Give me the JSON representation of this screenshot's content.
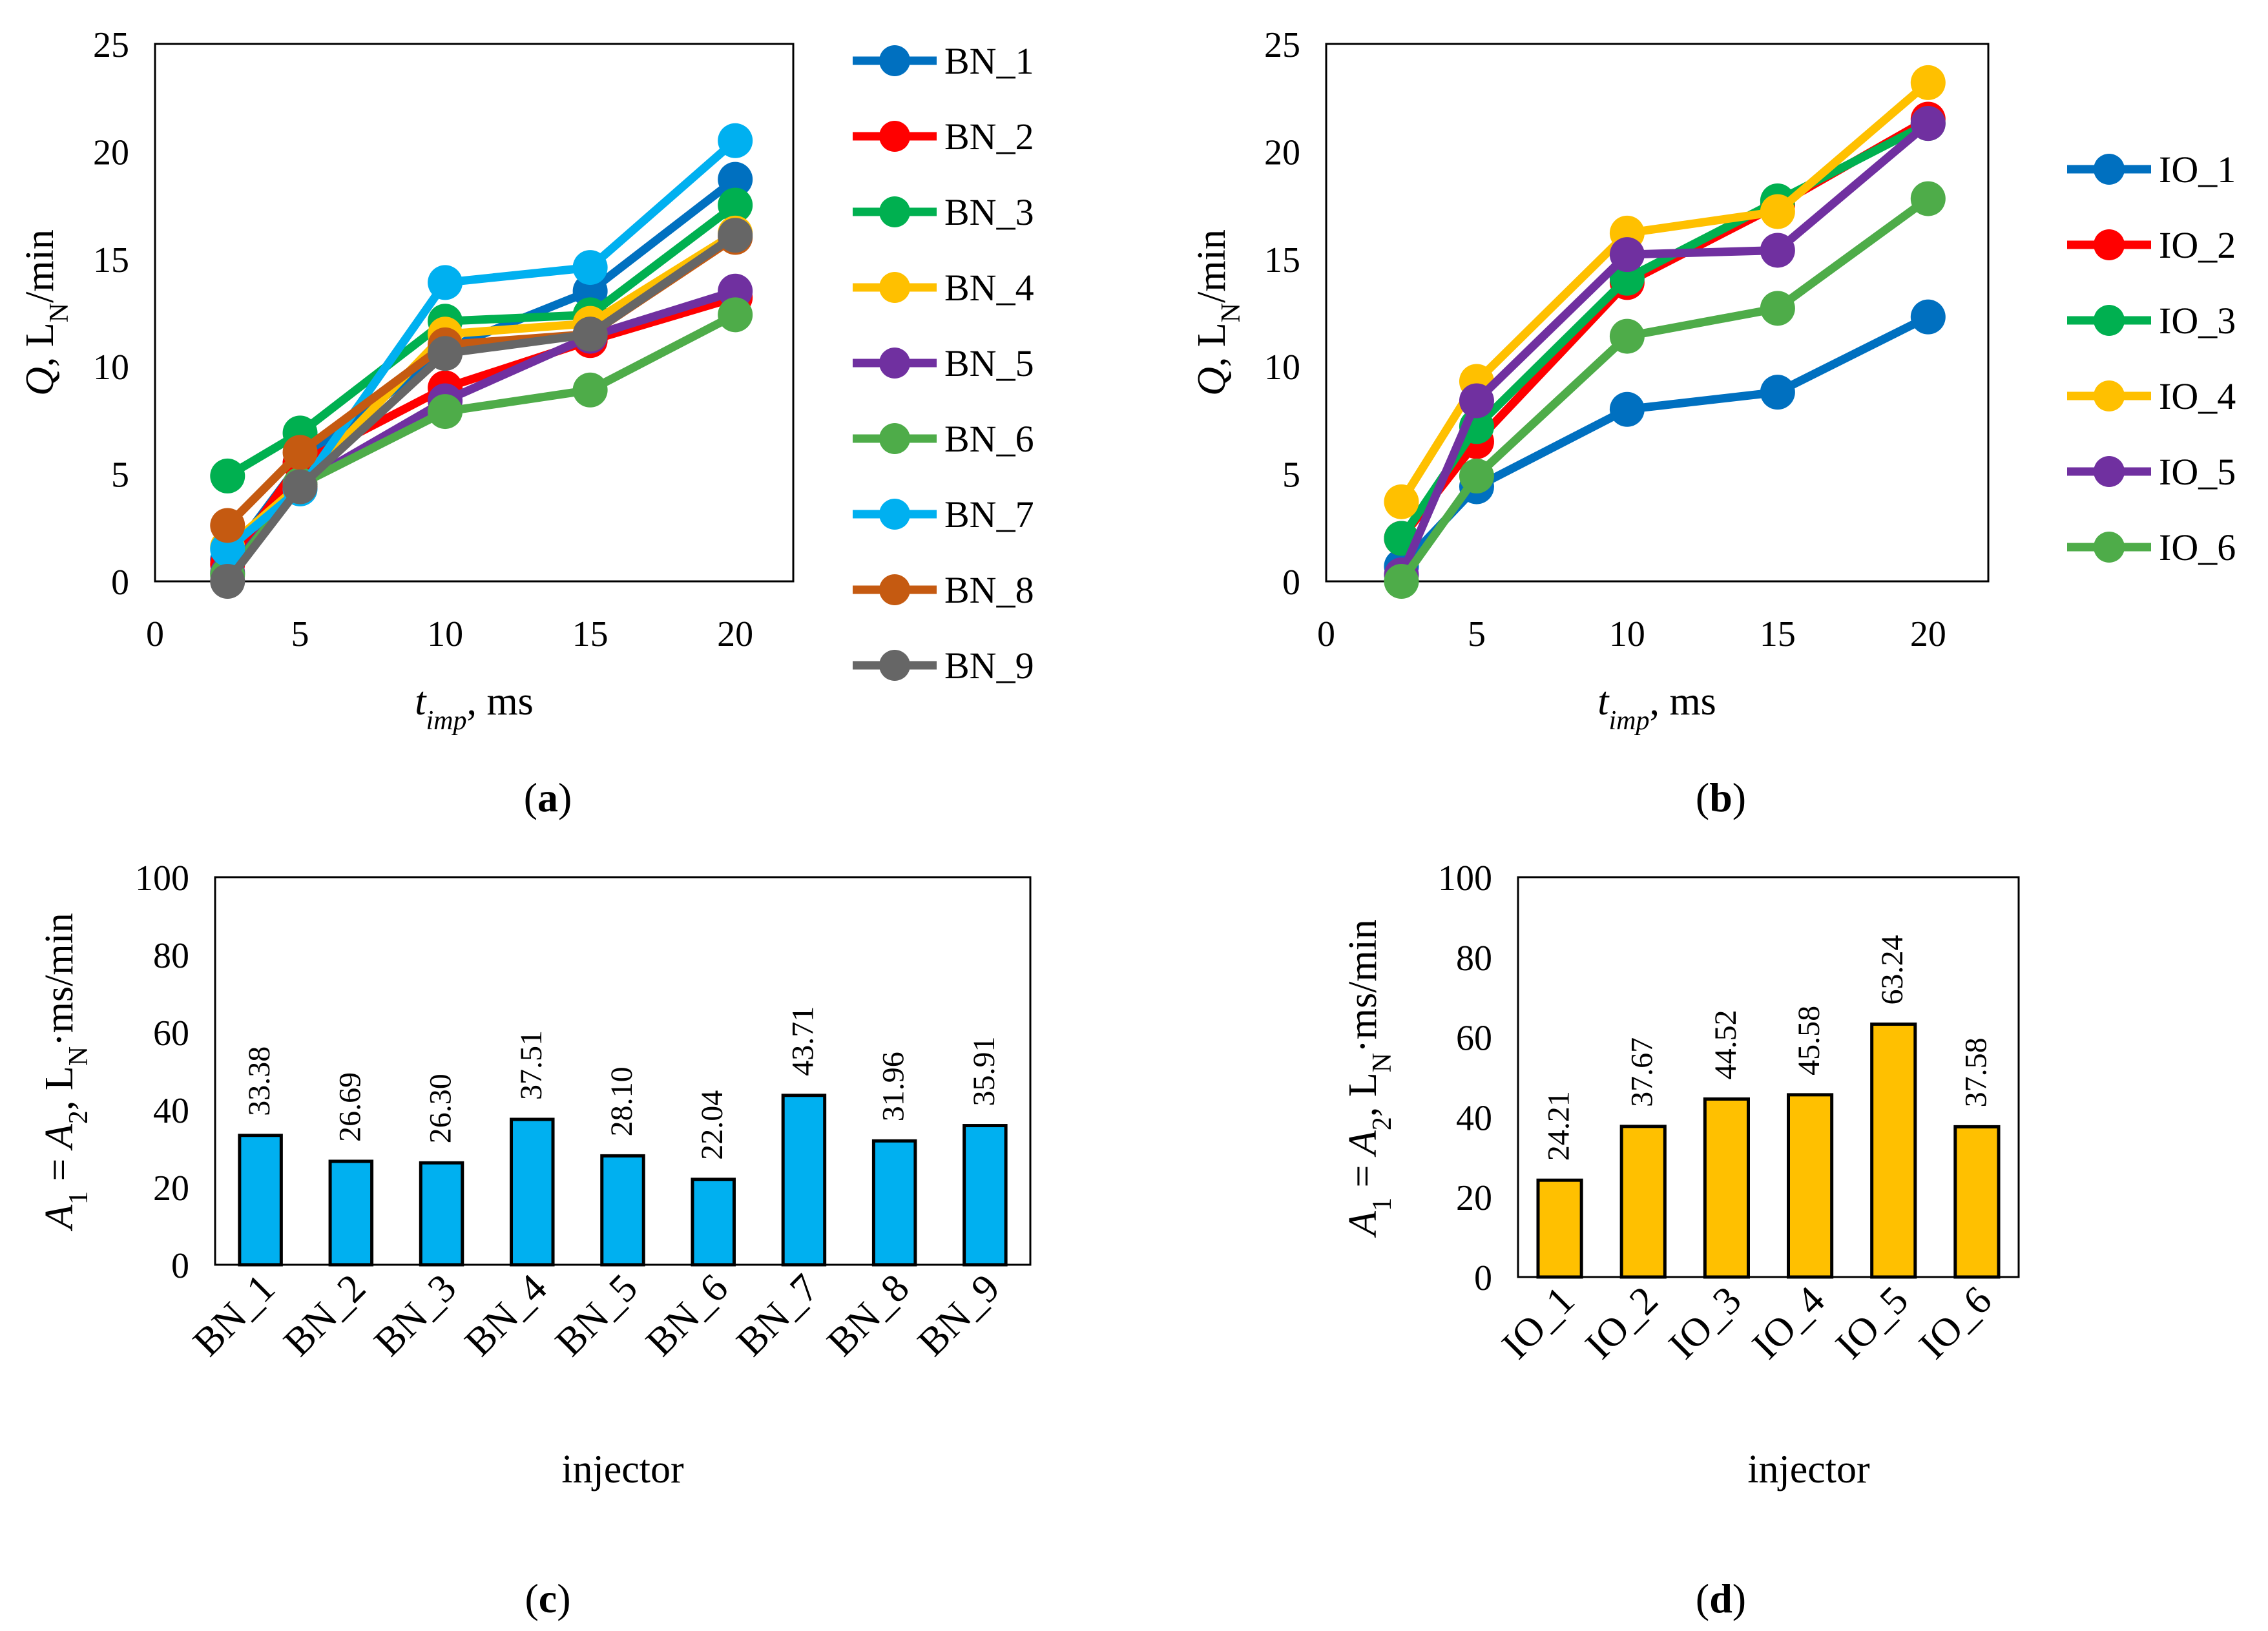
{
  "colors": {
    "c1": "#0070C0",
    "c2": "#FF0000",
    "c3": "#00B050",
    "c4": "#FFC000",
    "c5": "#7030A0",
    "c6": "#4EAC49",
    "c7": "#00B0F0",
    "c8": "#C55A11",
    "c9": "#666666",
    "bar_c": "#00B0F0",
    "bar_d": "#FFC000"
  },
  "captions": {
    "a": {
      "open": "(",
      "letter": "a",
      "close": ")"
    },
    "b": {
      "open": "(",
      "letter": "b",
      "close": ")"
    },
    "c": {
      "open": "(",
      "letter": "c",
      "close": ")"
    },
    "d": {
      "open": "(",
      "letter": "d",
      "close": ")"
    }
  },
  "axis_text": {
    "q": "Q",
    "q_rest": ", L",
    "q_sub": "N",
    "q_unit": "/min",
    "t": "t",
    "t_sub": "imp",
    "t_unit": ", ms",
    "a1": "A",
    "a1_sub": "1",
    "a_eq": " = ",
    "a2": "A",
    "a2_sub": "2",
    "a_rest": ", L",
    "a_sub": "N",
    "a_unit": "·ms/min"
  },
  "chart_data": [
    {
      "id": "a",
      "type": "line",
      "xlabel": "t_imp, ms",
      "ylabel": "Q, L_N/min",
      "xlim": [
        0,
        22
      ],
      "ylim": [
        0,
        25
      ],
      "xticks": [
        "0",
        "5",
        "10",
        "15",
        "20"
      ],
      "yticks": [
        "0",
        "5",
        "10",
        "15",
        "20",
        "25"
      ],
      "legend": "right",
      "series": [
        {
          "name": "BN_1",
          "color": "#0070C0",
          "x": [
            2.5,
            5,
            10,
            15,
            20
          ],
          "y": [
            1.0,
            5.5,
            10.8,
            13.5,
            18.7
          ]
        },
        {
          "name": "BN_2",
          "color": "#FF0000",
          "x": [
            2.5,
            5,
            10,
            15,
            20
          ],
          "y": [
            0.8,
            5.5,
            9.0,
            11.2,
            13.2
          ]
        },
        {
          "name": "BN_3",
          "color": "#00B050",
          "x": [
            2.5,
            5,
            10,
            15,
            20
          ],
          "y": [
            4.9,
            6.9,
            12.1,
            12.4,
            17.5
          ]
        },
        {
          "name": "BN_4",
          "color": "#FFC000",
          "x": [
            2.5,
            5,
            10,
            15,
            20
          ],
          "y": [
            1.6,
            4.5,
            11.5,
            12.0,
            16.2
          ]
        },
        {
          "name": "BN_5",
          "color": "#7030A0",
          "x": [
            2.5,
            5,
            10,
            15,
            20
          ],
          "y": [
            0.4,
            4.5,
            8.4,
            11.4,
            13.5
          ]
        },
        {
          "name": "BN_6",
          "color": "#4EAC49",
          "x": [
            2.5,
            5,
            10,
            15,
            20
          ],
          "y": [
            0.3,
            4.5,
            7.9,
            8.9,
            12.4
          ]
        },
        {
          "name": "BN_7",
          "color": "#00B0F0",
          "x": [
            2.5,
            5,
            10,
            15,
            20
          ],
          "y": [
            1.5,
            4.3,
            13.9,
            14.6,
            20.5
          ]
        },
        {
          "name": "BN_8",
          "color": "#C55A11",
          "x": [
            2.5,
            5,
            10,
            15,
            20
          ],
          "y": [
            2.6,
            6.0,
            11.0,
            11.5,
            16.0
          ]
        },
        {
          "name": "BN_9",
          "color": "#666666",
          "x": [
            2.5,
            5,
            10,
            15,
            20
          ],
          "y": [
            0.0,
            4.4,
            10.6,
            11.5,
            16.1
          ]
        }
      ]
    },
    {
      "id": "b",
      "type": "line",
      "xlabel": "t_imp, ms",
      "ylabel": "Q, L_N/min",
      "xlim": [
        0,
        22
      ],
      "ylim": [
        0,
        25
      ],
      "xticks": [
        "0",
        "5",
        "10",
        "15",
        "20"
      ],
      "yticks": [
        "0",
        "5",
        "10",
        "15",
        "20",
        "25"
      ],
      "legend": "right",
      "series": [
        {
          "name": "IO_1",
          "color": "#0070C0",
          "x": [
            2.5,
            5,
            10,
            15,
            20
          ],
          "y": [
            0.7,
            4.4,
            8.0,
            8.8,
            12.3
          ]
        },
        {
          "name": "IO_2",
          "color": "#FF0000",
          "x": [
            2.5,
            5,
            10,
            15,
            20
          ],
          "y": [
            2.0,
            6.5,
            13.9,
            17.5,
            21.5
          ]
        },
        {
          "name": "IO_3",
          "color": "#00B050",
          "x": [
            2.5,
            5,
            10,
            15,
            20
          ],
          "y": [
            2.0,
            7.2,
            14.1,
            17.7,
            21.3
          ]
        },
        {
          "name": "IO_4",
          "color": "#FFC000",
          "x": [
            2.5,
            5,
            10,
            15,
            20
          ],
          "y": [
            3.7,
            9.3,
            16.2,
            17.2,
            23.2
          ]
        },
        {
          "name": "IO_5",
          "color": "#7030A0",
          "x": [
            2.5,
            5,
            10,
            15,
            20
          ],
          "y": [
            0.3,
            8.4,
            15.2,
            15.4,
            21.3
          ]
        },
        {
          "name": "IO_6",
          "color": "#4EAC49",
          "x": [
            2.5,
            5,
            10,
            15,
            20
          ],
          "y": [
            0.0,
            4.9,
            11.4,
            12.7,
            17.8
          ]
        }
      ]
    },
    {
      "id": "c",
      "type": "bar",
      "xlabel": "injector",
      "ylabel": "A1 = A2, L_N·ms/min",
      "ylim": [
        0,
        100
      ],
      "yticks": [
        "0",
        "20",
        "40",
        "60",
        "80",
        "100"
      ],
      "categories": [
        "BN_1",
        "BN_2",
        "BN_3",
        "BN_4",
        "BN_5",
        "BN_6",
        "BN_7",
        "BN_8",
        "BN_9"
      ],
      "values": [
        33.38,
        26.69,
        26.3,
        37.51,
        28.1,
        22.04,
        43.71,
        31.96,
        35.91
      ],
      "labels": [
        "33.38",
        "26.69",
        "26.30",
        "37.51",
        "28.10",
        "22.04",
        "43.71",
        "31.96",
        "35.91"
      ],
      "color": "#00B0F0"
    },
    {
      "id": "d",
      "type": "bar",
      "xlabel": "injector",
      "ylabel": "A1 = A2, L_N·ms/min",
      "ylim": [
        0,
        100
      ],
      "yticks": [
        "0",
        "20",
        "40",
        "60",
        "80",
        "100"
      ],
      "categories": [
        "IO_1",
        "IO_2",
        "IO_3",
        "IO_4",
        "IO_5",
        "IO_6"
      ],
      "values": [
        24.21,
        37.67,
        44.52,
        45.58,
        63.24,
        37.58
      ],
      "labels": [
        "24.21",
        "37.67",
        "44.52",
        "45.58",
        "63.24",
        "37.58"
      ],
      "color": "#FFC000"
    }
  ]
}
